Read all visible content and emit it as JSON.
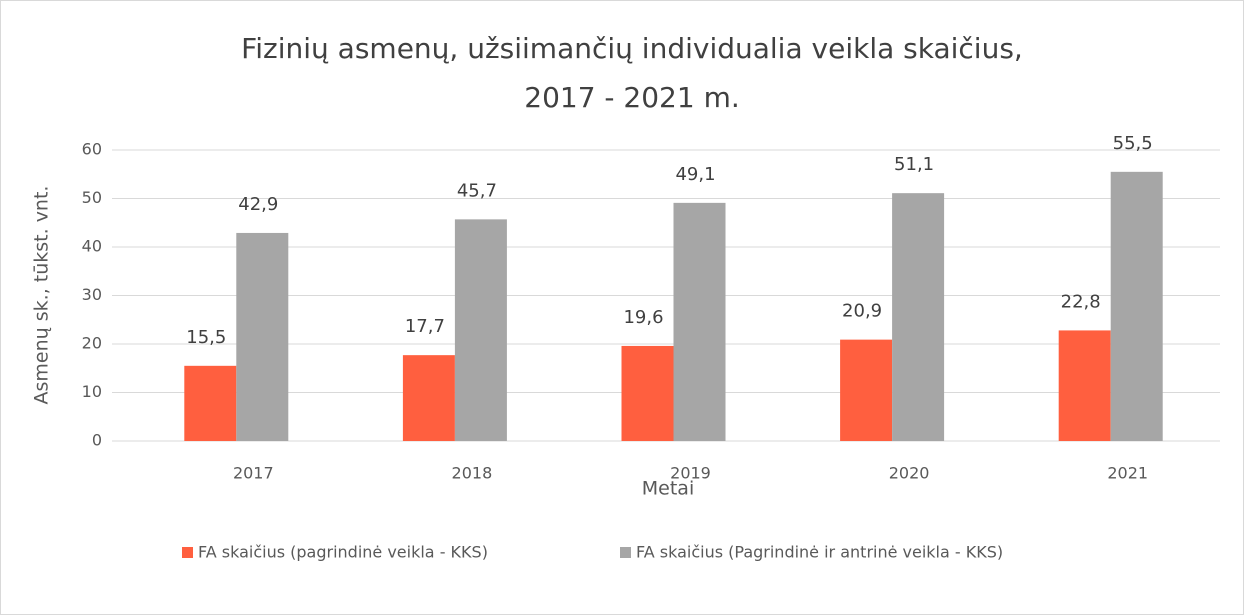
{
  "chart_data": {
    "type": "bar",
    "title": [
      "Fizinių asmenų, užsiimančių individualia veikla skaičius,",
      "2017 - 2021 m."
    ],
    "x_label": "Metai",
    "y_label": "Asmenų sk., tūkst. vnt.",
    "categories": [
      "2017",
      "2018",
      "2019",
      "2020",
      "2021"
    ],
    "series": [
      {
        "name": "FA skaičius (pagrindinė veikla - KKS)",
        "color": "#ff5f3f",
        "values": [
          15.5,
          17.7,
          19.6,
          20.9,
          22.8
        ],
        "value_labels": [
          "15,5",
          "17,7",
          "19,6",
          "20,9",
          "22,8"
        ]
      },
      {
        "name": "FA skaičius (Pagrindinė ir antrinė veikla - KKS)",
        "color": "#a6a6a6",
        "values": [
          42.9,
          45.7,
          49.1,
          51.1,
          55.5
        ],
        "value_labels": [
          "42,9",
          "45,7",
          "49,1",
          "51,1",
          "55,5"
        ]
      }
    ],
    "ylim": [
      0,
      60
    ],
    "yticks": [
      0,
      10,
      20,
      30,
      40,
      50,
      60
    ],
    "grid": true,
    "legend": "bottom"
  }
}
